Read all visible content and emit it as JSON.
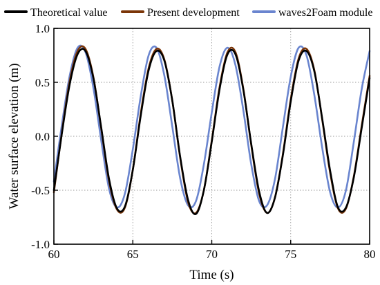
{
  "chart_data": {
    "type": "line",
    "title": "",
    "xlabel": "Time (s)",
    "ylabel": "Water surface elevation (m)",
    "xlim": [
      60,
      80
    ],
    "ylim": [
      -1.0,
      1.0
    ],
    "x_ticks": [
      60,
      65,
      70,
      75,
      80
    ],
    "x_tick_labels": [
      "60",
      "65",
      "70",
      "75",
      "80"
    ],
    "y_ticks": [
      -1.0,
      -0.5,
      0.0,
      0.5,
      1.0
    ],
    "y_tick_labels": [
      "-1.0",
      "-0.5",
      "0.0",
      "0.5",
      "1.0"
    ],
    "grid": true,
    "legend_position": "top",
    "series": [
      {
        "name": "Theoretical value",
        "color": "#000000",
        "x": [
          60.0,
          60.5,
          61.0,
          61.5,
          62.0,
          62.5,
          63.0,
          63.5,
          64.0,
          64.5,
          65.0,
          65.5,
          66.0,
          66.5,
          67.0,
          67.5,
          68.0,
          68.5,
          69.0,
          69.5,
          70.0,
          70.5,
          71.0,
          71.5,
          72.0,
          72.5,
          73.0,
          73.5,
          74.0,
          74.5,
          75.0,
          75.5,
          76.0,
          76.5,
          77.0,
          77.5,
          78.0,
          78.5,
          79.0,
          79.5,
          80.0
        ],
        "y": [
          -0.5,
          0.02,
          0.48,
          0.76,
          0.79,
          0.54,
          0.08,
          -0.4,
          -0.67,
          -0.65,
          -0.31,
          0.19,
          0.61,
          0.79,
          0.7,
          0.33,
          -0.19,
          -0.59,
          -0.72,
          -0.5,
          -0.05,
          0.44,
          0.76,
          0.76,
          0.43,
          -0.07,
          -0.51,
          -0.71,
          -0.57,
          -0.18,
          0.32,
          0.7,
          0.79,
          0.6,
          0.16,
          -0.32,
          -0.66,
          -0.66,
          -0.38,
          0.08,
          0.54
        ]
      },
      {
        "name": "Present development",
        "color": "#7b3508",
        "x": [
          60.0,
          60.5,
          61.0,
          61.5,
          62.0,
          62.5,
          63.0,
          63.5,
          64.0,
          64.5,
          65.0,
          65.5,
          66.0,
          66.5,
          67.0,
          67.5,
          68.0,
          68.5,
          69.0,
          69.5,
          70.0,
          70.5,
          71.0,
          71.5,
          72.0,
          72.5,
          73.0,
          73.5,
          74.0,
          74.5,
          75.0,
          75.5,
          76.0,
          76.5,
          77.0,
          77.5,
          78.0,
          78.5,
          79.0,
          79.5,
          80.0
        ],
        "y": [
          -0.52,
          0.03,
          0.51,
          0.79,
          0.81,
          0.55,
          0.07,
          -0.42,
          -0.68,
          -0.66,
          -0.31,
          0.21,
          0.63,
          0.81,
          0.71,
          0.33,
          -0.2,
          -0.61,
          -0.71,
          -0.5,
          -0.04,
          0.46,
          0.78,
          0.78,
          0.44,
          -0.08,
          -0.53,
          -0.71,
          -0.57,
          -0.17,
          0.34,
          0.72,
          0.81,
          0.61,
          0.15,
          -0.34,
          -0.67,
          -0.67,
          -0.37,
          0.1,
          0.56
        ]
      },
      {
        "name": "waves2Foam module",
        "color": "#6a85cf",
        "x": [
          60.0,
          60.5,
          61.0,
          61.5,
          62.0,
          62.5,
          63.0,
          63.5,
          64.0,
          64.5,
          65.0,
          65.5,
          66.0,
          66.5,
          67.0,
          67.5,
          68.0,
          68.5,
          69.0,
          69.5,
          70.0,
          70.5,
          71.0,
          71.5,
          72.0,
          72.5,
          73.0,
          73.5,
          74.0,
          74.5,
          75.0,
          75.5,
          76.0,
          76.5,
          77.0,
          77.5,
          78.0,
          78.5,
          79.0,
          79.5,
          80.0
        ],
        "y": [
          -0.42,
          0.1,
          0.56,
          0.82,
          0.78,
          0.45,
          -0.04,
          -0.49,
          -0.66,
          -0.53,
          -0.12,
          0.37,
          0.75,
          0.82,
          0.56,
          0.09,
          -0.39,
          -0.64,
          -0.6,
          -0.26,
          0.22,
          0.65,
          0.82,
          0.66,
          0.24,
          -0.26,
          -0.6,
          -0.64,
          -0.4,
          0.08,
          0.55,
          0.82,
          0.75,
          0.38,
          -0.11,
          -0.52,
          -0.66,
          -0.5,
          -0.05,
          0.44,
          0.79
        ]
      }
    ]
  }
}
